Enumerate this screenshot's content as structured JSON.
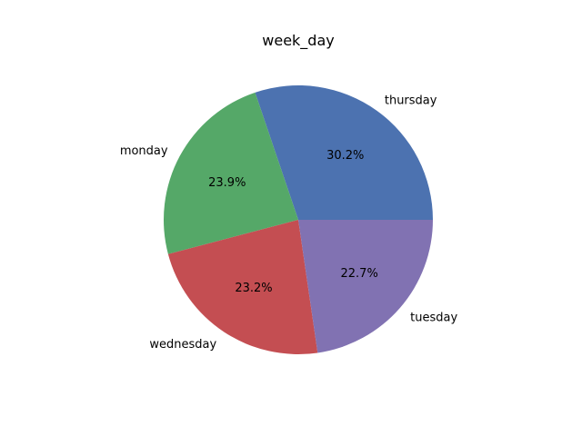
{
  "chart_data": {
    "type": "pie",
    "title": "week_day",
    "slices": [
      {
        "label": "thursday",
        "value": 30.2,
        "pct_label": "30.2%",
        "color": "#4c72b0"
      },
      {
        "label": "monday",
        "value": 23.9,
        "pct_label": "23.9%",
        "color": "#55a868"
      },
      {
        "label": "wednesday",
        "value": 23.2,
        "pct_label": "23.2%",
        "color": "#c44e52"
      },
      {
        "label": "tuesday",
        "value": 22.7,
        "pct_label": "22.7%",
        "color": "#8172b2"
      }
    ],
    "start_angle_deg": 0,
    "direction": "counterclockwise"
  }
}
